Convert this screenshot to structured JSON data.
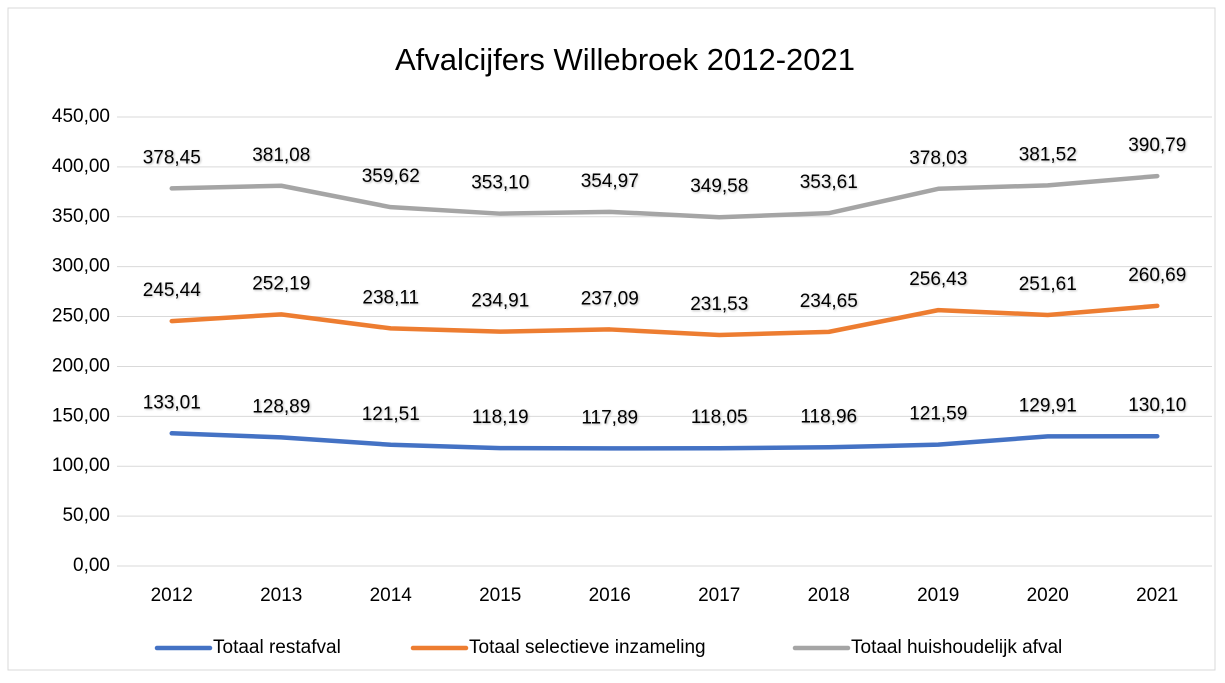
{
  "chart_data": {
    "type": "line",
    "title": "Afvalcijfers Willebroek 2012-2021",
    "categories": [
      "2012",
      "2013",
      "2014",
      "2015",
      "2016",
      "2017",
      "2018",
      "2019",
      "2020",
      "2021"
    ],
    "series": [
      {
        "name": "Totaal restafval",
        "color": "#4472c4",
        "values": [
          133.01,
          128.89,
          121.51,
          118.19,
          117.89,
          118.05,
          118.96,
          121.59,
          129.91,
          130.1
        ],
        "value_labels": [
          "133,01",
          "128,89",
          "121,51",
          "118,19",
          "117,89",
          "118,05",
          "118,96",
          "121,59",
          "129,91",
          "130,10"
        ]
      },
      {
        "name": "Totaal selectieve inzameling",
        "color": "#ed7d31",
        "values": [
          245.44,
          252.19,
          238.11,
          234.91,
          237.09,
          231.53,
          234.65,
          256.43,
          251.61,
          260.69
        ],
        "value_labels": [
          "245,44",
          "252,19",
          "238,11",
          "234,91",
          "237,09",
          "231,53",
          "234,65",
          "256,43",
          "251,61",
          "260,69"
        ]
      },
      {
        "name": "Totaal huishoudelijk afval",
        "color": "#a5a5a5",
        "values": [
          378.45,
          381.08,
          359.62,
          353.1,
          354.97,
          349.58,
          353.61,
          378.03,
          381.52,
          390.79
        ],
        "value_labels": [
          "378,45",
          "381,08",
          "359,62",
          "353,10",
          "354,97",
          "349,58",
          "353,61",
          "378,03",
          "381,52",
          "390,79"
        ]
      }
    ],
    "ylim": [
      0,
      450
    ],
    "yticks": [
      {
        "value": 0,
        "label": "0,00"
      },
      {
        "value": 50,
        "label": "50,00"
      },
      {
        "value": 100,
        "label": "100,00"
      },
      {
        "value": 150,
        "label": "150,00"
      },
      {
        "value": 200,
        "label": "200,00"
      },
      {
        "value": 250,
        "label": "250,00"
      },
      {
        "value": 300,
        "label": "300,00"
      },
      {
        "value": 350,
        "label": "350,00"
      },
      {
        "value": 400,
        "label": "400,00"
      },
      {
        "value": 450,
        "label": "450,00"
      }
    ],
    "grid": true,
    "legend": "bottom"
  }
}
